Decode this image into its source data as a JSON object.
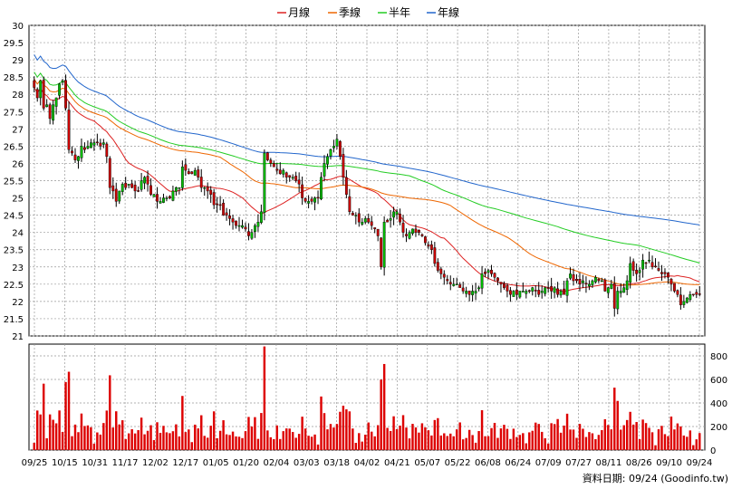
{
  "chart_data": {
    "type": "candlestick",
    "legend": [
      {
        "label": "月線",
        "color": "#dd2222"
      },
      {
        "label": "季線",
        "color": "#ee6600"
      },
      {
        "label": "半年",
        "color": "#22cc22"
      },
      {
        "label": "年線",
        "color": "#2266cc"
      }
    ],
    "price_axis": {
      "min": 21,
      "max": 30,
      "ticks": [
        "30",
        "29.5",
        "29",
        "28.5",
        "28",
        "27.5",
        "27",
        "26.5",
        "26",
        "25.5",
        "25",
        "24.5",
        "24",
        "23.5",
        "23",
        "22.5",
        "22",
        "21.5",
        "21"
      ]
    },
    "volume_axis": {
      "min": 0,
      "max": 900,
      "ticks": [
        "800",
        "600",
        "400",
        "200",
        "0"
      ]
    },
    "x_labels": [
      "09/25",
      "10/15",
      "10/31",
      "11/17",
      "12/02",
      "12/17",
      "01/05",
      "01/20",
      "02/04",
      "03/03",
      "03/18",
      "04/02",
      "04/21",
      "05/07",
      "05/22",
      "06/08",
      "06/24",
      "07/09",
      "07/27",
      "08/11",
      "08/26",
      "09/10",
      "09/24"
    ],
    "grid": true,
    "legend_position": "top-center",
    "source_note": "資料日期: 09/24  (Goodinfo.tw)",
    "colors": {
      "up_candle": "#00bb00",
      "down_candle": "#cc0000",
      "wick": "#000000",
      "volume": "#dd0000",
      "grid": "#999999"
    },
    "close": [
      28.2,
      27.9,
      28.4,
      27.6,
      27.7,
      27.3,
      27.7,
      27.9,
      28.3,
      28.4,
      27.6,
      26.4,
      26.3,
      26.1,
      26.2,
      26.5,
      26.4,
      26.5,
      26.6,
      26.6,
      26.6,
      26.5,
      26.6,
      26.2,
      25.3,
      25.2,
      24.9,
      25.2,
      25.4,
      25.3,
      25.4,
      25.3,
      25.2,
      25.2,
      25.5,
      25.6,
      25.4,
      25.1,
      25.1,
      24.9,
      24.9,
      25.0,
      25.0,
      25.0,
      25.2,
      25.3,
      25.3,
      25.9,
      25.8,
      25.7,
      25.7,
      25.8,
      25.6,
      25.3,
      25.3,
      25.2,
      25.1,
      24.8,
      24.8,
      24.8,
      24.5,
      24.5,
      24.4,
      24.3,
      24.2,
      24.2,
      24.2,
      24.1,
      23.9,
      24.0,
      24.2,
      24.3,
      24.6,
      26.3,
      26.1,
      26.0,
      25.9,
      25.8,
      25.7,
      25.8,
      25.6,
      25.6,
      25.6,
      25.5,
      25.4,
      25.0,
      24.9,
      24.9,
      24.9,
      25.0,
      25.0,
      25.6,
      26.0,
      26.2,
      26.4,
      26.5,
      26.7,
      26.2,
      25.6,
      25.1,
      24.6,
      24.5,
      24.5,
      24.3,
      24.3,
      24.4,
      24.3,
      24.2,
      24.1,
      23.9,
      23.0,
      24.3,
      24.3,
      24.4,
      24.6,
      24.6,
      24.3,
      24.0,
      23.9,
      24.0,
      24.1,
      24.0,
      24.0,
      23.9,
      23.7,
      23.6,
      23.5,
      23.1,
      22.9,
      22.8,
      22.7,
      22.6,
      22.5,
      22.5,
      22.5,
      22.4,
      22.3,
      22.3,
      22.2,
      22.3,
      22.3,
      22.4,
      22.8,
      22.8,
      22.9,
      22.8,
      22.7,
      22.6,
      22.5,
      22.4,
      22.3,
      22.2,
      22.3,
      22.2,
      22.3,
      22.3,
      22.3,
      22.3,
      22.4,
      22.3,
      22.2,
      22.3,
      22.4,
      22.4,
      22.3,
      22.4,
      22.2,
      22.3,
      22.2,
      22.6,
      22.8,
      22.6,
      22.6,
      22.5,
      22.6,
      22.5,
      22.5,
      22.6,
      22.7,
      22.6,
      22.6,
      22.3,
      22.4,
      22.5,
      21.8,
      22.3,
      22.3,
      22.4,
      22.6,
      23.1,
      22.9,
      22.8,
      22.9,
      23.2,
      23.1,
      23.2,
      23.0,
      23.0,
      22.9,
      22.8,
      22.8,
      22.7,
      22.5,
      22.3,
      22.2,
      21.9,
      22.0,
      22.1,
      22.2,
      22.2,
      22.2,
      22.2
    ]
  },
  "note": "資料日期: 09/24  (Goodinfo.tw)"
}
